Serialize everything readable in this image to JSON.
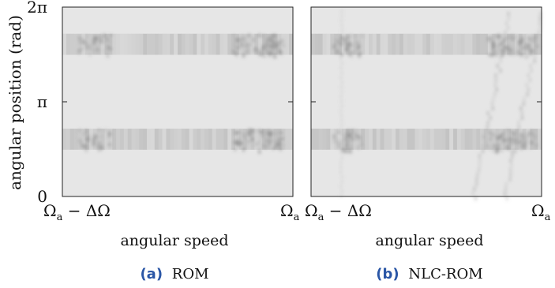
{
  "chart_data": [
    {
      "type": "heatmap",
      "subtitle_tag": "(a)",
      "subtitle": "ROM",
      "xlabel": "angular speed",
      "ylabel": "angular position (rad)",
      "xtick_labels": [
        "Ω_a − ΔΩ",
        "Ω_a"
      ],
      "ytick_labels": [
        "0",
        "π",
        "2π"
      ],
      "ylim": [
        0,
        6.2832
      ],
      "bands": [
        {
          "center": 1.9,
          "halfwidth": 0.35
        },
        {
          "center": 5.05,
          "halfwidth": 0.35
        }
      ],
      "dark_regions": [
        {
          "x": 0.1,
          "strength": 0.35
        },
        {
          "x": 0.17,
          "strength": 0.35
        },
        {
          "x": 0.77,
          "strength": 0.55
        },
        {
          "x": 0.85,
          "strength": 0.45
        },
        {
          "x": 0.92,
          "strength": 0.55
        }
      ]
    },
    {
      "type": "heatmap",
      "subtitle_tag": "(b)",
      "subtitle": "NLC-ROM",
      "xlabel": "angular speed",
      "ylabel": "",
      "xtick_labels": [
        "Ω_a − ΔΩ",
        "Ω_a"
      ],
      "ytick_labels": [],
      "ylim": [
        0,
        6.2832
      ],
      "bands": [
        {
          "center": 1.9,
          "halfwidth": 0.35
        },
        {
          "center": 5.05,
          "halfwidth": 0.35
        }
      ],
      "dark_regions": [
        {
          "x": 0.13,
          "strength": 0.5
        },
        {
          "x": 0.18,
          "strength": 0.45
        },
        {
          "x": 0.8,
          "strength": 0.7
        },
        {
          "x": 0.88,
          "strength": 0.55
        },
        {
          "x": 0.94,
          "strength": 0.45
        }
      ],
      "streaks": [
        {
          "x_start": 0.7,
          "x_end": 0.86
        },
        {
          "x_start": 0.84,
          "x_end": 1.0
        }
      ],
      "vertical_line_x": 0.13
    }
  ],
  "colors": {
    "background": "#e6e6e6",
    "band": "#c8c8c8",
    "dark": "#8a8a8a",
    "caption_tag": "#2a56a6"
  }
}
